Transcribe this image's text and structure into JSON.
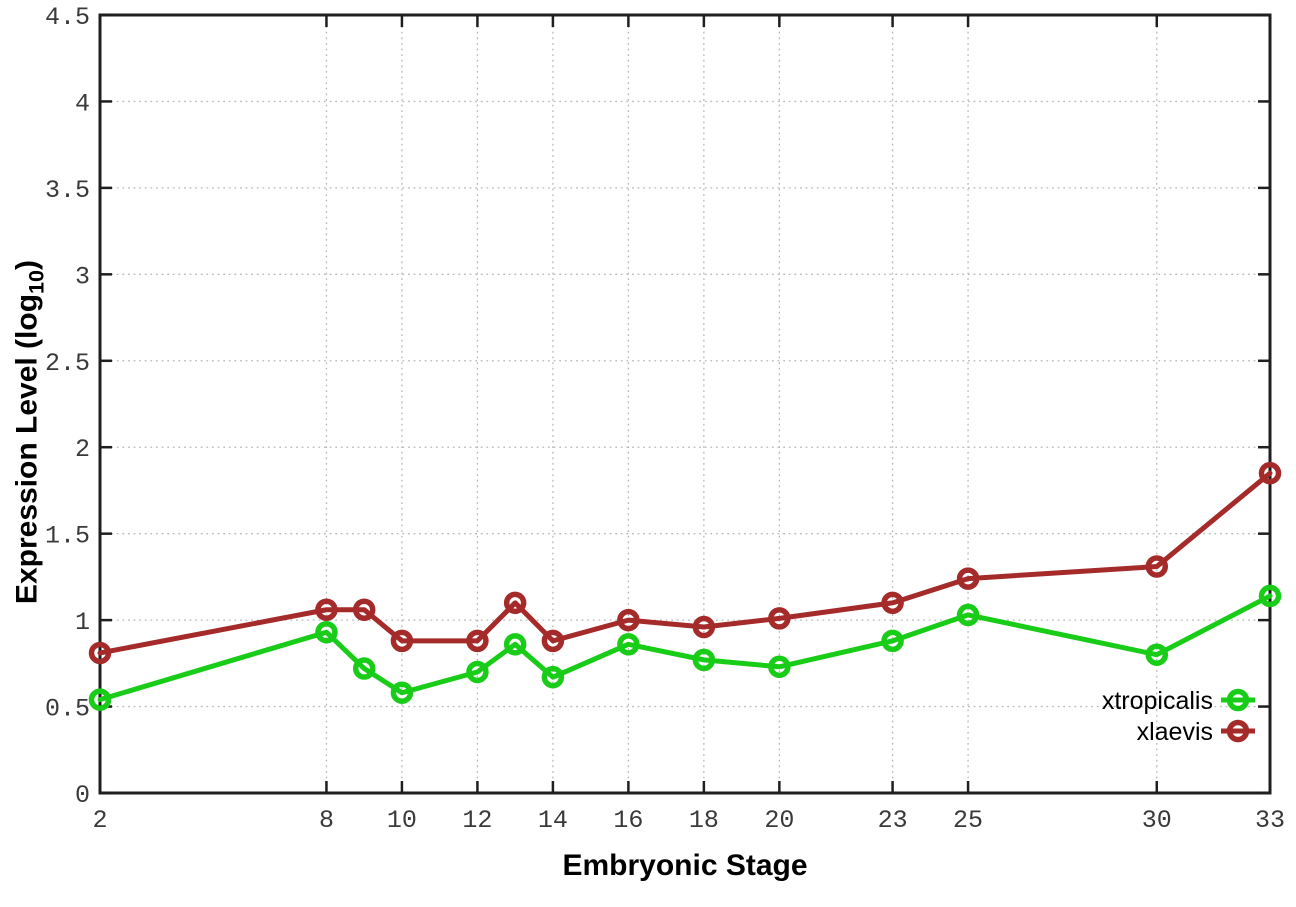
{
  "chart_data": {
    "type": "line",
    "title": "",
    "xlabel": "Embryonic Stage",
    "ylabel": "Expression Level (log10)",
    "ylabel_main": "Expression Level (log",
    "ylabel_sub": "10",
    "ylabel_close": ")",
    "x": [
      2,
      8,
      9,
      10,
      12,
      13,
      14,
      16,
      18,
      20,
      23,
      25,
      30,
      33
    ],
    "series": [
      {
        "name": "xtropicalis",
        "color": "#18cc18",
        "values": [
          0.54,
          0.93,
          0.72,
          0.58,
          0.7,
          0.86,
          0.67,
          0.86,
          0.77,
          0.73,
          0.88,
          1.03,
          0.8,
          1.14
        ]
      },
      {
        "name": "xlaevis",
        "color": "#a52a2a",
        "values": [
          0.81,
          1.06,
          1.06,
          0.88,
          0.88,
          1.1,
          0.88,
          1.0,
          0.96,
          1.01,
          1.1,
          1.24,
          1.31,
          1.85
        ]
      }
    ],
    "xlim": [
      2,
      33
    ],
    "ylim": [
      0,
      4.5
    ],
    "x_ticks": [
      2,
      8,
      10,
      12,
      14,
      16,
      18,
      20,
      23,
      25,
      30,
      33
    ],
    "y_ticks": [
      0,
      0.5,
      1,
      1.5,
      2,
      2.5,
      3,
      3.5,
      4,
      4.5
    ],
    "grid": true,
    "marker": "open-circle",
    "legend_position": "inside-right",
    "colors": {
      "axis": "#1f1f1f",
      "grid": "#b9b9b9",
      "tick_label": "#3a3a3a",
      "title": "#000000",
      "background": "#ffffff"
    }
  }
}
